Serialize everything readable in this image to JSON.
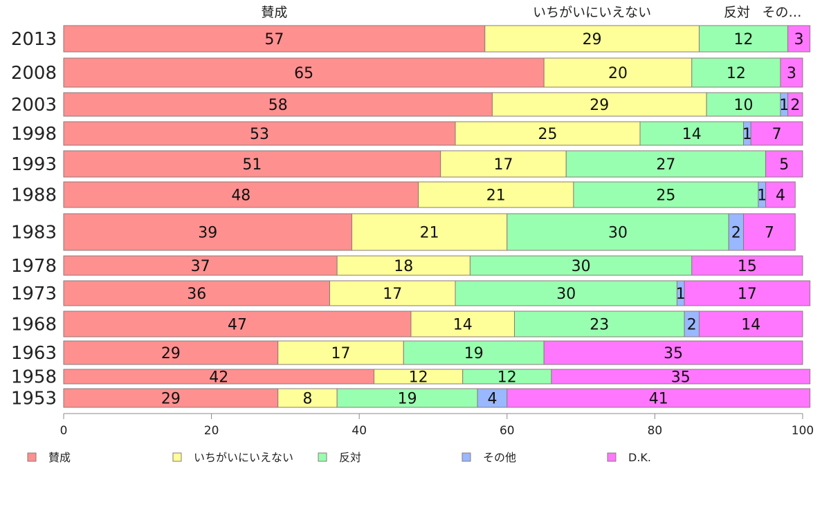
{
  "chart_data": {
    "type": "bar",
    "orientation": "horizontal",
    "stacked": true,
    "categories": [
      "2013",
      "2008",
      "2003",
      "1998",
      "1993",
      "1988",
      "1983",
      "1978",
      "1973",
      "1968",
      "1963",
      "1958",
      "1953"
    ],
    "series": [
      {
        "name": "賛成",
        "color": "#ff9090",
        "values": [
          57,
          65,
          58,
          53,
          51,
          48,
          39,
          37,
          36,
          47,
          29,
          42,
          29
        ]
      },
      {
        "name": "いちがいにいえない",
        "color": "#ffff99",
        "values": [
          29,
          20,
          29,
          25,
          17,
          21,
          21,
          18,
          17,
          14,
          17,
          12,
          8
        ]
      },
      {
        "name": "反対",
        "color": "#99ffb0",
        "values": [
          12,
          12,
          10,
          14,
          27,
          25,
          30,
          30,
          30,
          23,
          19,
          12,
          19
        ]
      },
      {
        "name": "その他",
        "color": "#99b8ff",
        "values": [
          0,
          0,
          1,
          1,
          0,
          1,
          2,
          0,
          1,
          2,
          0,
          0,
          4
        ]
      },
      {
        "name": "D.K.",
        "color": "#ff77ff",
        "values": [
          3,
          3,
          2,
          7,
          5,
          4,
          7,
          15,
          17,
          14,
          35,
          35,
          41
        ]
      }
    ],
    "top_labels": [
      "賛成",
      "いちがいにいえない",
      "反対",
      "その…"
    ],
    "xlim": [
      0,
      100
    ],
    "xticks": [
      "0",
      "20",
      "40",
      "60",
      "80",
      "100"
    ],
    "grid": false,
    "legend_placement": "bottom"
  }
}
